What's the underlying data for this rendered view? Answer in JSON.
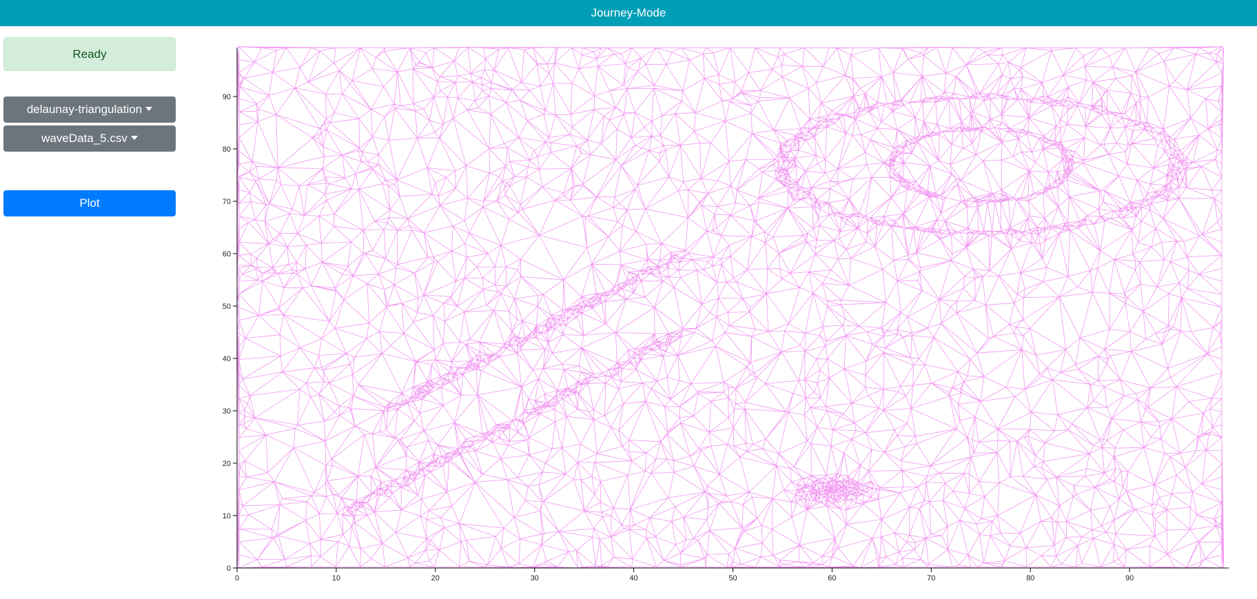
{
  "header": {
    "title": "Journey-Mode"
  },
  "sidebar": {
    "status": "Ready",
    "algorithm_select": "delaunay-triangulation",
    "dataset_select": "waveData_5.csv",
    "plot_button": "Plot"
  },
  "colors": {
    "header": "#009fb7",
    "status_bg": "#d4edda",
    "status_text": "#155724",
    "dropdown": "#6c757d",
    "primary": "#007bff",
    "mesh": "#ee82ee"
  },
  "chart_data": {
    "type": "scatter",
    "rendering": "delaunay-triangulation mesh",
    "xlim": [
      0,
      100
    ],
    "ylim": [
      0,
      100
    ],
    "x_ticks": [
      "0",
      "10",
      "20",
      "30",
      "40",
      "50",
      "60",
      "70",
      "80",
      "90"
    ],
    "y_ticks": [
      "0",
      "10",
      "20",
      "30",
      "40",
      "50",
      "60",
      "70",
      "80",
      "90"
    ],
    "grid": false,
    "clusters": [
      {
        "shape": "line",
        "from": [
          10,
          10
        ],
        "to": [
          45,
          45
        ],
        "density": "high"
      },
      {
        "shape": "line",
        "from": [
          15,
          30
        ],
        "to": [
          45,
          60
        ],
        "density": "high"
      },
      {
        "shape": "ellipse",
        "center": [
          75,
          77
        ],
        "radii": [
          20,
          13
        ],
        "density": "high"
      },
      {
        "shape": "ring",
        "center": [
          75,
          77
        ],
        "radii": [
          9,
          7
        ],
        "density": "high"
      },
      {
        "shape": "blob",
        "center": [
          60,
          15
        ],
        "radii": [
          6,
          4
        ],
        "density": "high"
      }
    ]
  }
}
